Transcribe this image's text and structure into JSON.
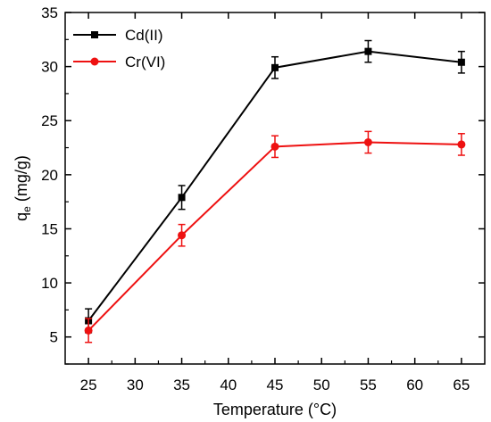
{
  "chart_data": {
    "type": "line",
    "title": "",
    "xlabel": "Temperature (°C)",
    "ylabel_main": "q",
    "ylabel_sub": "e",
    "ylabel_unit": " (mg/g)",
    "x": [
      25,
      35,
      45,
      55,
      65
    ],
    "xlim": [
      22.5,
      67.5
    ],
    "ylim": [
      2.5,
      35
    ],
    "xticks": [
      25,
      30,
      35,
      40,
      45,
      50,
      55,
      60,
      65
    ],
    "yticks": [
      5,
      10,
      15,
      20,
      25,
      30,
      35
    ],
    "grid": false,
    "legend_position": "top-left",
    "series": [
      {
        "name": "Cd(II)",
        "color": "#000000",
        "marker": "square",
        "values": [
          6.5,
          17.9,
          29.9,
          31.4,
          30.4
        ],
        "errors": [
          1.1,
          1.1,
          1.0,
          1.0,
          1.0
        ]
      },
      {
        "name": "Cr(VI)",
        "color": "#ee1111",
        "marker": "circle",
        "values": [
          5.6,
          14.4,
          22.6,
          23.0,
          22.8
        ],
        "errors": [
          1.1,
          1.0,
          1.0,
          1.0,
          1.0
        ]
      }
    ]
  }
}
